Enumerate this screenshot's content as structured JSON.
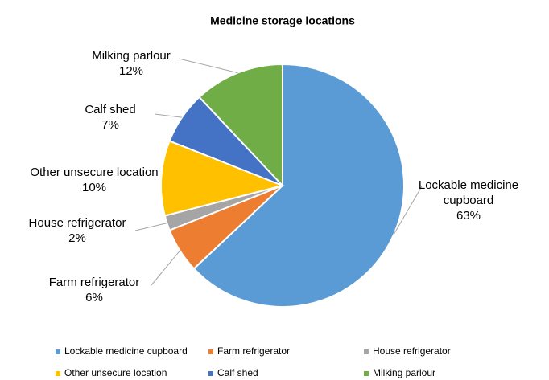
{
  "chart_data": {
    "type": "pie",
    "title": "Medicine storage locations",
    "categories": [
      "Lockable medicine cupboard",
      "Farm refrigerator",
      "House refrigerator",
      "Other unsecure location",
      "Calf shed",
      "Milking parlour"
    ],
    "values": [
      63,
      6,
      2,
      10,
      7,
      12
    ],
    "value_labels": [
      "63%",
      "6%",
      "2%",
      "10%",
      "7%",
      "12%"
    ],
    "colors": [
      "#5b9bd5",
      "#ed7d31",
      "#a5a5a5",
      "#ffc000",
      "#4472c4",
      "#70ad47"
    ],
    "legend": "bottom"
  }
}
